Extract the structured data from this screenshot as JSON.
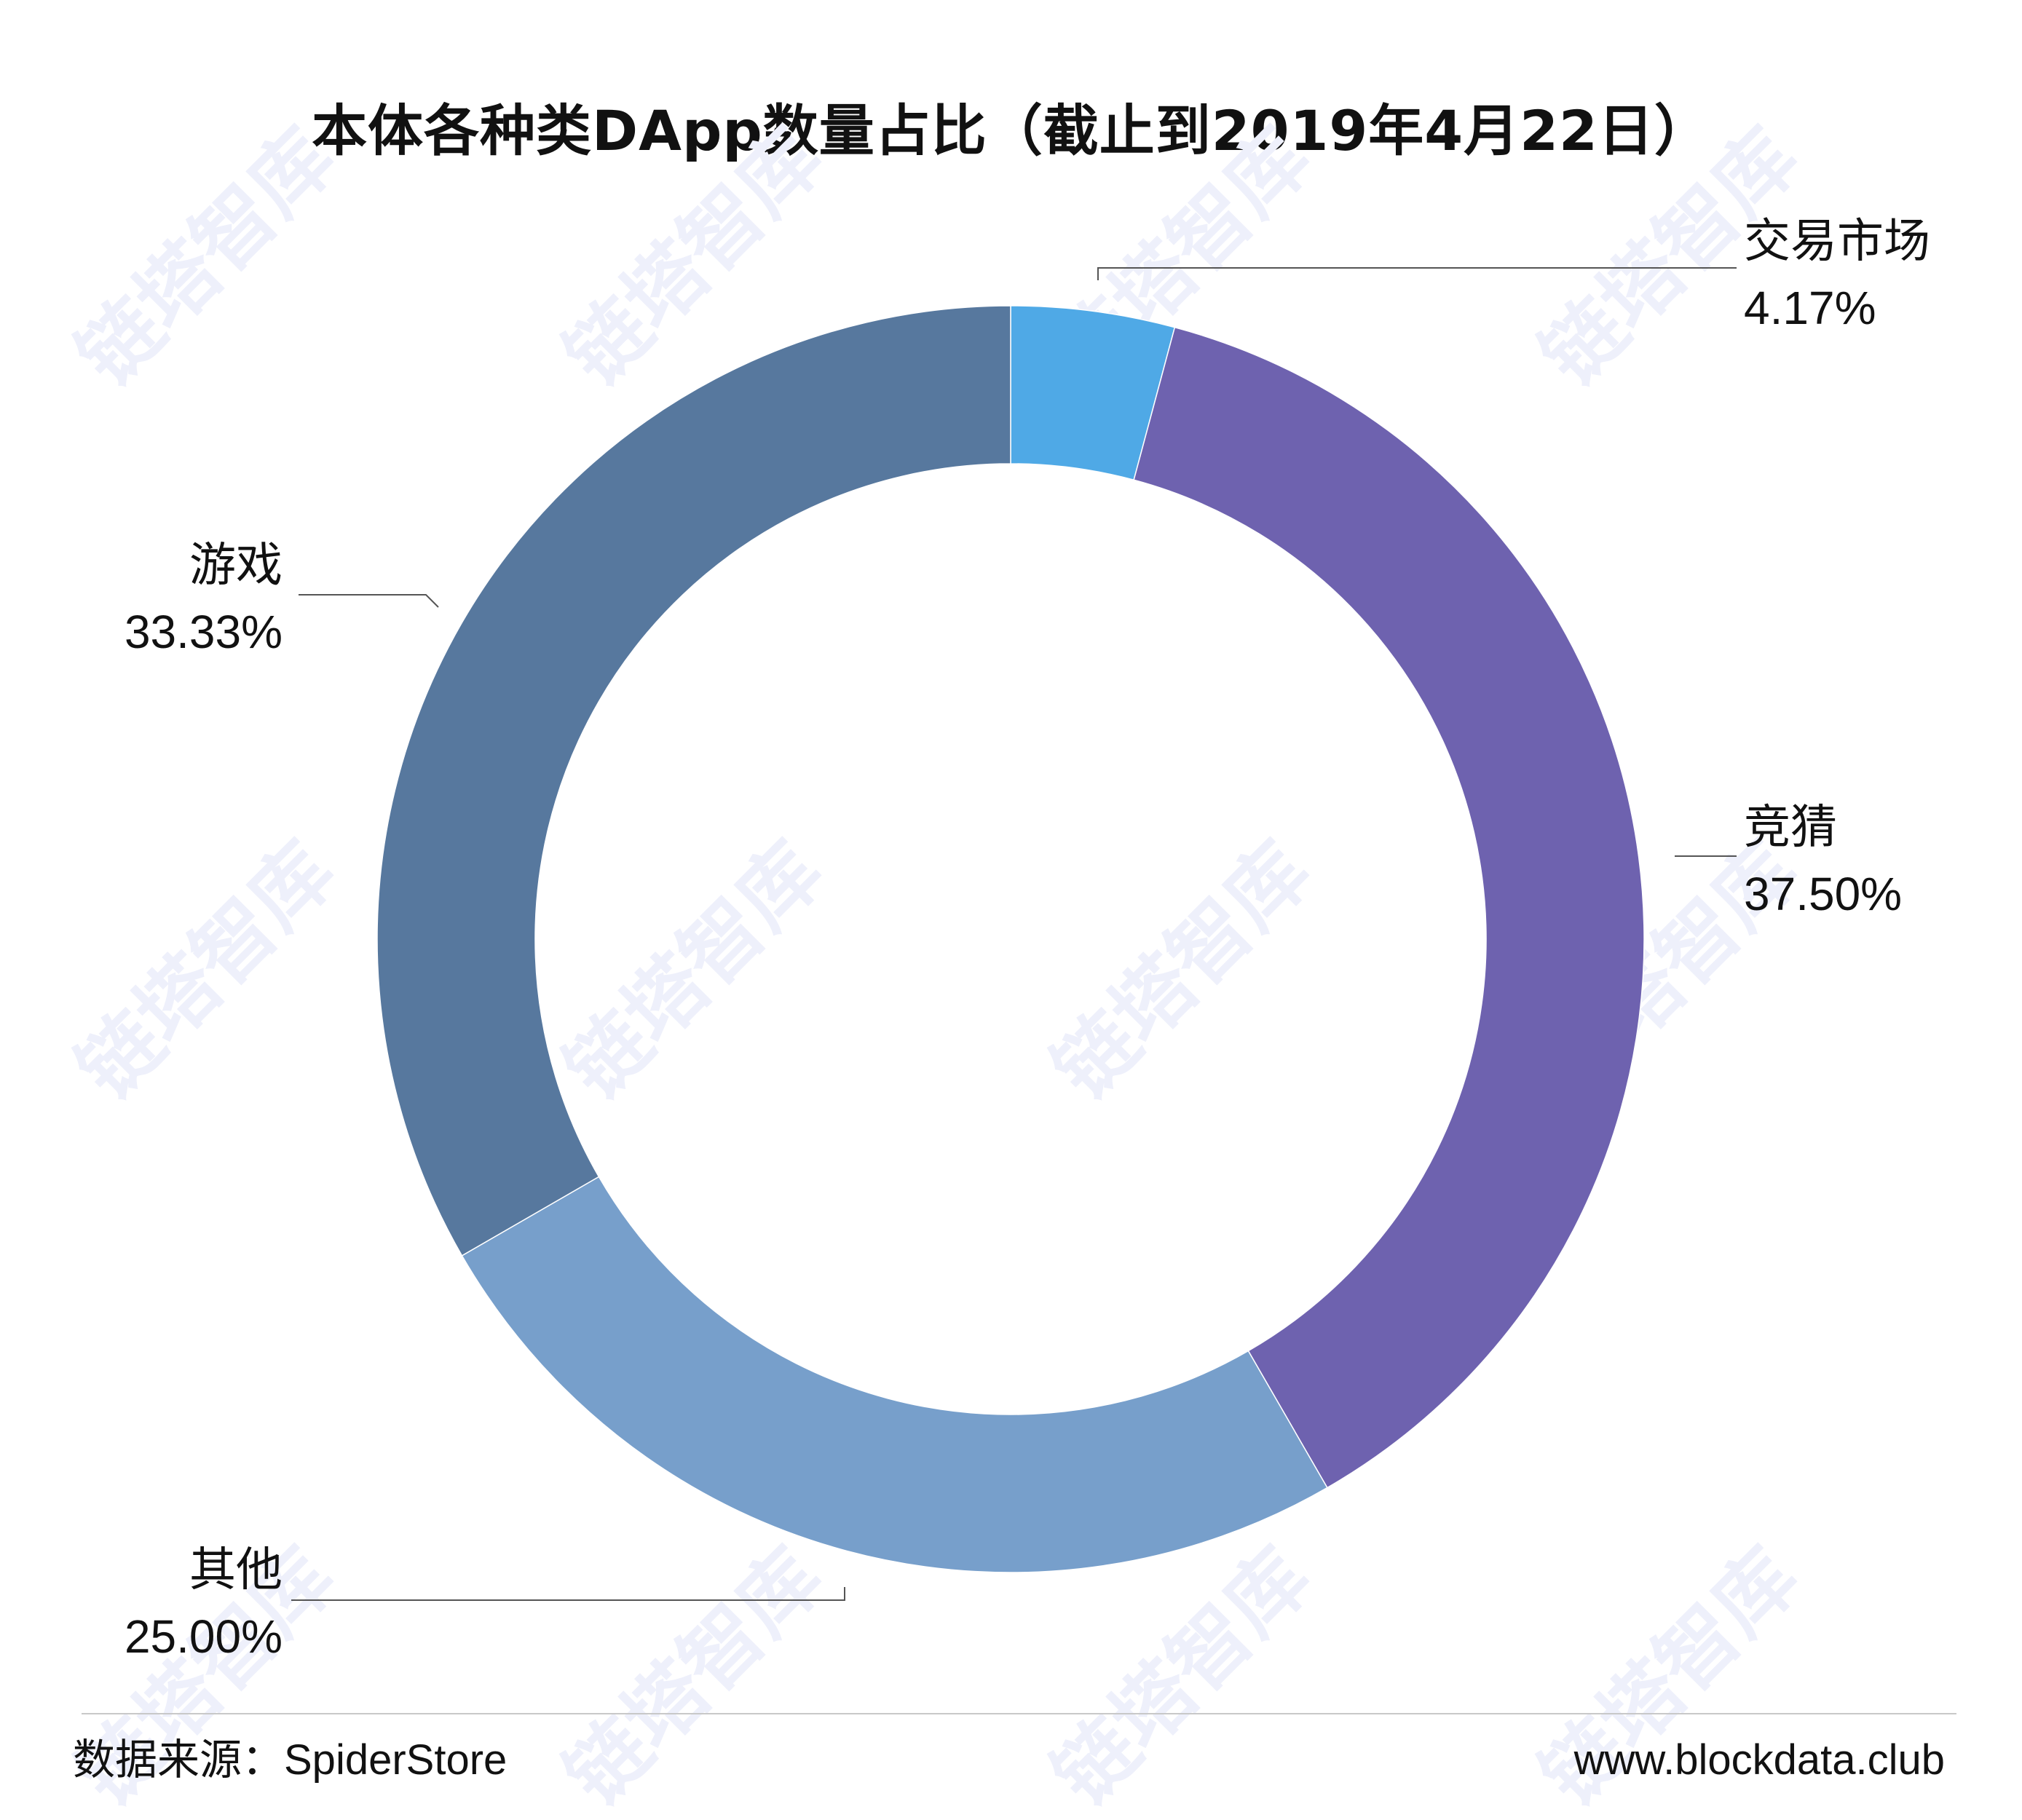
{
  "chart_data": {
    "type": "pie",
    "style": "donut",
    "title": "本体各种类DApp数量占比（截止到2019年4月22日）",
    "slices": [
      {
        "label": "交易市场",
        "value": 4.17,
        "value_label": "4.17%",
        "color": "#4FA9E6"
      },
      {
        "label": "竞猜",
        "value": 37.5,
        "value_label": "37.50%",
        "color": "#6E62AF"
      },
      {
        "label": "其他",
        "value": 25.0,
        "value_label": "25.00%",
        "color": "#779FCB"
      },
      {
        "label": "游戏",
        "value": 33.33,
        "value_label": "33.33%",
        "color": "#57789E"
      }
    ],
    "start_angle": "12 o'clock",
    "direction": "clockwise",
    "legend": "none"
  },
  "footer": {
    "source": "数据来源：SpiderStore",
    "website": "www.blockdata.club"
  },
  "watermark": {
    "text": "链塔智库",
    "color": "#EEF0FB"
  }
}
